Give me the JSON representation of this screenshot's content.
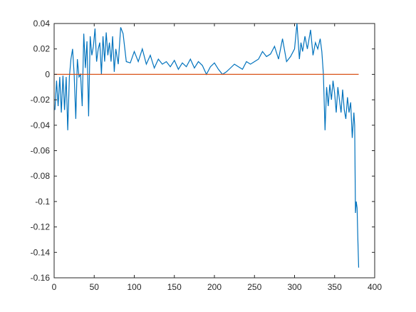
{
  "chart_data": {
    "type": "line",
    "title": "",
    "xlabel": "",
    "ylabel": "",
    "xlim": [
      0,
      400
    ],
    "ylim": [
      -0.16,
      0.04
    ],
    "xticks": [
      0,
      50,
      100,
      150,
      200,
      250,
      300,
      350,
      400
    ],
    "xtick_labels": [
      "0",
      "50",
      "100",
      "150",
      "200",
      "250",
      "300",
      "350",
      "400"
    ],
    "yticks": [
      0.04,
      0.02,
      0,
      -0.02,
      -0.04,
      -0.06,
      -0.08,
      -0.1,
      -0.12,
      -0.14,
      -0.16
    ],
    "ytick_labels": [
      "0.04",
      "0.02",
      "0",
      "-0.02",
      "-0.04",
      "-0.06",
      "-0.08",
      "-0.1",
      "-0.12",
      "-0.14",
      "-0.16"
    ],
    "grid": false,
    "legend": "none",
    "colors": {
      "series": "#0072BD",
      "reference": "#D95319",
      "axes": "#262626"
    },
    "series": [
      {
        "x": [
          1,
          3,
          5,
          7,
          9,
          11,
          13,
          15,
          17,
          19,
          21,
          23,
          25,
          27,
          29,
          31,
          33,
          35,
          37,
          39,
          41,
          43,
          45,
          47,
          49,
          51,
          53,
          55,
          57,
          59,
          61,
          63,
          65,
          67,
          69,
          71,
          73,
          75,
          77,
          80,
          83,
          86,
          90,
          95,
          100,
          105,
          110,
          115,
          120,
          125,
          130,
          135,
          140,
          145,
          150,
          155,
          160,
          165,
          170,
          175,
          180,
          185,
          190,
          195,
          200,
          205,
          210,
          215,
          220,
          225,
          230,
          235,
          240,
          245,
          250,
          255,
          260,
          265,
          270,
          275,
          280,
          285,
          290,
          295,
          300,
          303,
          306,
          308,
          310,
          313,
          316,
          320,
          323,
          326,
          329,
          332,
          334,
          336,
          338,
          340,
          342,
          344,
          346,
          348,
          350,
          352,
          354,
          356,
          358,
          360,
          362,
          364,
          366,
          368,
          370,
          372,
          374,
          375,
          376,
          377,
          378,
          379,
          380
        ],
        "y": [
          -0.028,
          -0.005,
          -0.025,
          -0.002,
          -0.03,
          -0.001,
          -0.028,
          -0.002,
          -0.044,
          -0.002,
          0.012,
          0.02,
          0.0,
          -0.035,
          0.012,
          -0.002,
          0.0,
          -0.025,
          0.032,
          0.005,
          0.026,
          -0.033,
          0.03,
          0.015,
          0.022,
          0.036,
          0.01,
          0.02,
          0.025,
          0.0,
          0.03,
          0.01,
          0.033,
          0.015,
          0.025,
          0.01,
          0.03,
          0.002,
          0.02,
          0.008,
          0.037,
          0.032,
          0.01,
          0.009,
          0.018,
          0.01,
          0.02,
          0.008,
          0.015,
          0.005,
          0.012,
          0.008,
          0.01,
          0.006,
          0.011,
          0.004,
          0.009,
          0.006,
          0.012,
          0.005,
          0.01,
          0.007,
          0.0,
          0.006,
          0.009,
          0.004,
          0.0,
          0.002,
          0.005,
          0.008,
          0.006,
          0.004,
          0.01,
          0.008,
          0.01,
          0.012,
          0.018,
          0.014,
          0.016,
          0.022,
          0.012,
          0.028,
          0.01,
          0.014,
          0.02,
          0.04,
          0.012,
          0.025,
          0.018,
          0.03,
          0.02,
          0.035,
          0.015,
          0.025,
          0.02,
          0.028,
          0.018,
          0.0,
          -0.044,
          -0.01,
          -0.025,
          -0.008,
          -0.02,
          -0.005,
          -0.015,
          -0.03,
          -0.01,
          -0.02,
          -0.03,
          -0.012,
          -0.028,
          -0.035,
          -0.018,
          -0.03,
          -0.022,
          -0.05,
          -0.03,
          -0.04,
          -0.109,
          -0.1,
          -0.105,
          -0.13,
          -0.152
        ]
      },
      {
        "x": [
          0,
          380
        ],
        "y": [
          0,
          0
        ]
      }
    ]
  }
}
